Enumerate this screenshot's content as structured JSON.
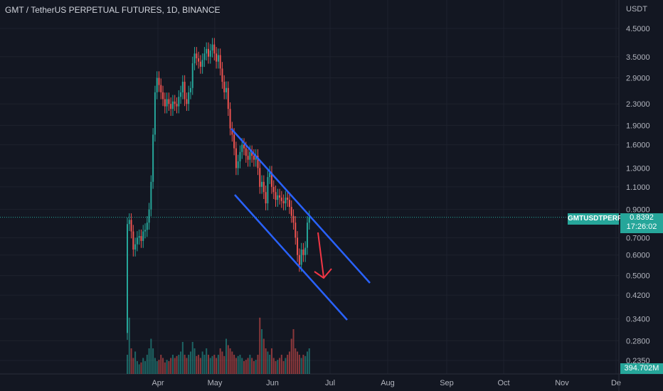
{
  "header": {
    "title": "GMT / TetherUS PERPETUAL FUTURES, 1D, BINANCE"
  },
  "axis": {
    "unit": "USDT"
  },
  "badges": {
    "symbol": "GMTUSDTPERP",
    "price": "0.8392",
    "countdown": "17:26:02",
    "volume": "394.702M"
  },
  "colors": {
    "bg": "#131722",
    "up": "#26a69a",
    "down": "#ef5350",
    "grid": "#1e222d",
    "channel": "#2962ff",
    "arrow": "#f23645",
    "text": "#b2b5be"
  },
  "chart_data": {
    "type": "candlestick",
    "y_scale": "log",
    "price_ticks": [
      "4.5000",
      "3.5000",
      "2.9000",
      "2.3000",
      "1.9000",
      "1.6000",
      "1.3000",
      "1.1000",
      "0.9000",
      "0.7000",
      "0.6000",
      "0.5000",
      "0.4200",
      "0.3400",
      "0.2800",
      "0.2350"
    ],
    "x_ticks": [
      "Apr",
      "May",
      "Jun",
      "Jul",
      "Aug",
      "Sep",
      "Oct",
      "Nov",
      "De"
    ],
    "ohlc_close": [
      0.79,
      0.82,
      0.74,
      0.63,
      0.66,
      0.7,
      0.71,
      0.68,
      0.74,
      0.75,
      0.8,
      0.9,
      1.15,
      1.75,
      2.55,
      2.9,
      2.72,
      2.55,
      2.4,
      2.25,
      2.4,
      2.3,
      2.2,
      2.35,
      2.3,
      2.25,
      2.45,
      2.55,
      2.8,
      2.4,
      2.3,
      2.55,
      2.65,
      3.3,
      3.6,
      3.45,
      3.35,
      3.2,
      3.4,
      3.6,
      3.75,
      3.5,
      3.7,
      3.9,
      3.6,
      3.35,
      3.55,
      3.15,
      2.8,
      2.55,
      2.65,
      2.2,
      1.85,
      1.75,
      1.55,
      1.3,
      1.38,
      1.5,
      1.6,
      1.55,
      1.45,
      1.4,
      1.5,
      1.45,
      1.4,
      1.45,
      1.3,
      1.1,
      1.15,
      1.05,
      0.95,
      1.2,
      1.25,
      1.1,
      1.05,
      0.98,
      1.02,
      1.0,
      0.97,
      0.95,
      1.0,
      0.98,
      0.92,
      0.85,
      0.8,
      0.7,
      0.6,
      0.55,
      0.63,
      0.6,
      0.64,
      0.8,
      0.84
    ],
    "channel": {
      "upper": [
        "~May 7: 1.85",
        "~Jul 25: 0.46"
      ],
      "lower": [
        "~May 7: 1.05",
        "~Jul 23: 0.34"
      ]
    },
    "annotation": "red arrow pointing down near Jun 20"
  }
}
